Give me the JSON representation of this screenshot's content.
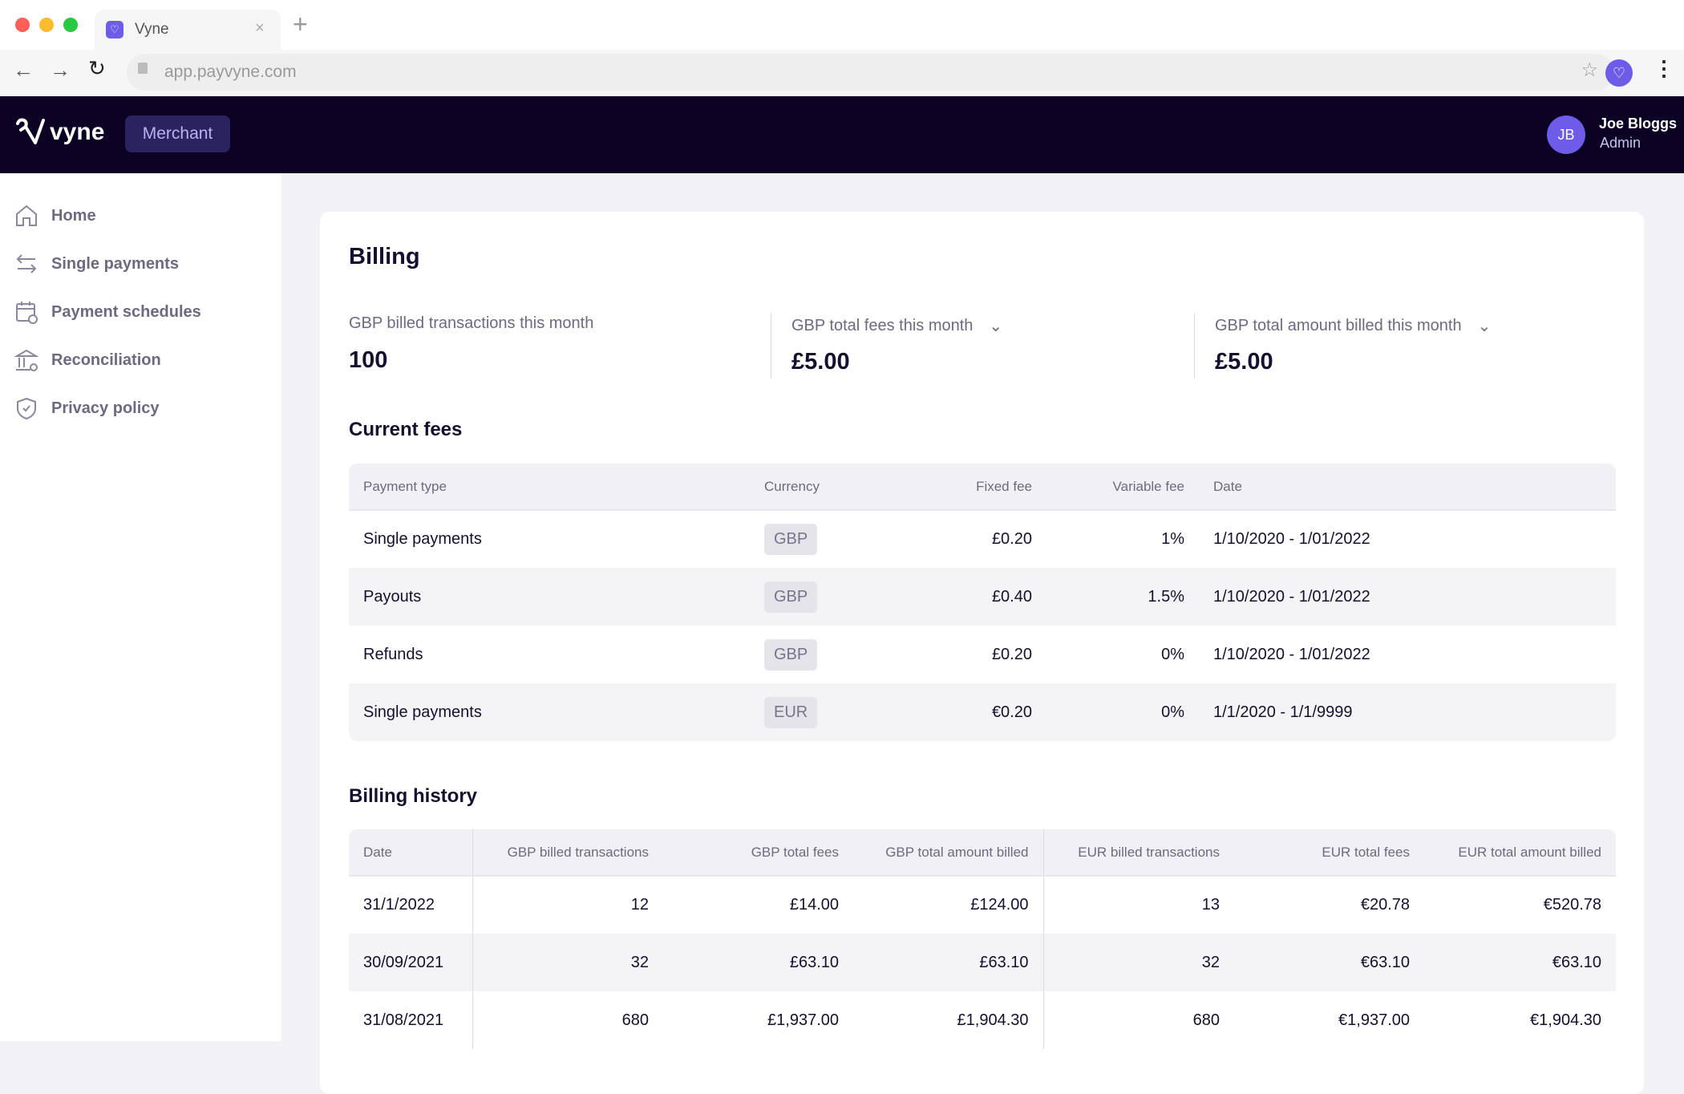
{
  "browser": {
    "tab_title": "Vyne",
    "url": "app.payvyne.com"
  },
  "header": {
    "logo": "vyne",
    "mode_button": "Merchant",
    "user": {
      "initials": "JB",
      "name": "Joe Bloggs",
      "role": "Admin"
    }
  },
  "sidebar": {
    "items": [
      {
        "label": "Home",
        "icon": "home-icon"
      },
      {
        "label": "Single payments",
        "icon": "arrows-icon"
      },
      {
        "label": "Payment schedules",
        "icon": "calendar-icon"
      },
      {
        "label": "Reconciliation",
        "icon": "bank-icon"
      },
      {
        "label": "Privacy policy",
        "icon": "shield-icon"
      }
    ]
  },
  "page": {
    "title": "Billing",
    "stats": [
      {
        "label": "GBP billed transactions this month",
        "value": "100"
      },
      {
        "label": "GBP total fees this month",
        "value": "£5.00"
      },
      {
        "label": "GBP total amount billed this month",
        "value": "£5.00"
      }
    ],
    "current_fees": {
      "title": "Current fees",
      "columns": [
        "Payment type",
        "Currency",
        "Fixed fee",
        "Variable fee",
        "Date"
      ],
      "rows": [
        [
          "Single payments",
          "GBP",
          "£0.20",
          "1%",
          "1/10/2020 - 1/01/2022"
        ],
        [
          "Payouts",
          "GBP",
          "£0.40",
          "1.5%",
          "1/10/2020 - 1/01/2022"
        ],
        [
          "Refunds",
          "GBP",
          "£0.20",
          "0%",
          "1/10/2020 - 1/01/2022"
        ],
        [
          "Single payments",
          "EUR",
          "€0.20",
          "0%",
          "1/1/2020 - 1/1/9999"
        ]
      ]
    },
    "billing_history": {
      "title": "Billing history",
      "columns": [
        "Date",
        "GBP billed transactions",
        "GBP total fees",
        "GBP total amount billed",
        "EUR billed transactions",
        "EUR total fees",
        "EUR total amount billed"
      ],
      "rows": [
        [
          "31/1/2022",
          "12",
          "£14.00",
          "£124.00",
          "13",
          "€20.78",
          "€520.78"
        ],
        [
          "30/09/2021",
          "32",
          "£63.10",
          "£63.10",
          "32",
          "€63.10",
          "€63.10"
        ],
        [
          "31/08/2021",
          "680",
          "£1,937.00",
          "£1,904.30",
          "680",
          "€1,937.00",
          "€1,904.30"
        ]
      ]
    }
  },
  "colors": {
    "accent": "#6c5ce7",
    "header_bg": "#0c0324"
  }
}
